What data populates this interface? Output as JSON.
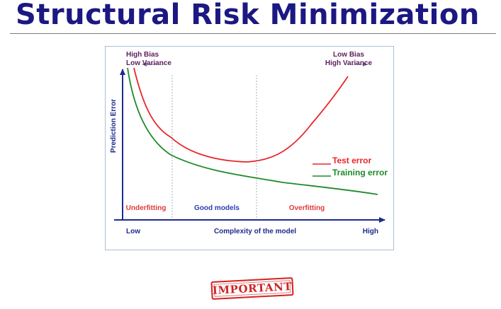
{
  "slide": {
    "title": "Structural Risk Minimization",
    "stamp_text": "IMPORTANT"
  },
  "figure": {
    "y_axis_label": "Prediction Error",
    "x_axis_label": "Complexity of the model",
    "x_low_label": "Low",
    "x_high_label": "High",
    "corner_left": [
      "High Bias",
      "Low Variance"
    ],
    "corner_right": [
      "Low Bias",
      "High Variance"
    ],
    "regions": [
      {
        "label": "Underfitting",
        "color": "#e03a3a"
      },
      {
        "label": "Good models",
        "color": "#2a3db4"
      },
      {
        "label": "Overfitting",
        "color": "#e03a3a"
      }
    ],
    "legend": [
      {
        "label": "Test error",
        "color": "#e8262a"
      },
      {
        "label": "Training error",
        "color": "#1f8a2a"
      }
    ]
  },
  "colors": {
    "title": "#1c1882",
    "axis": "#1c2b8c",
    "corner_text": "#5c1f5c",
    "frame": "#a9bfd6",
    "stamp": "#cf2424"
  }
}
